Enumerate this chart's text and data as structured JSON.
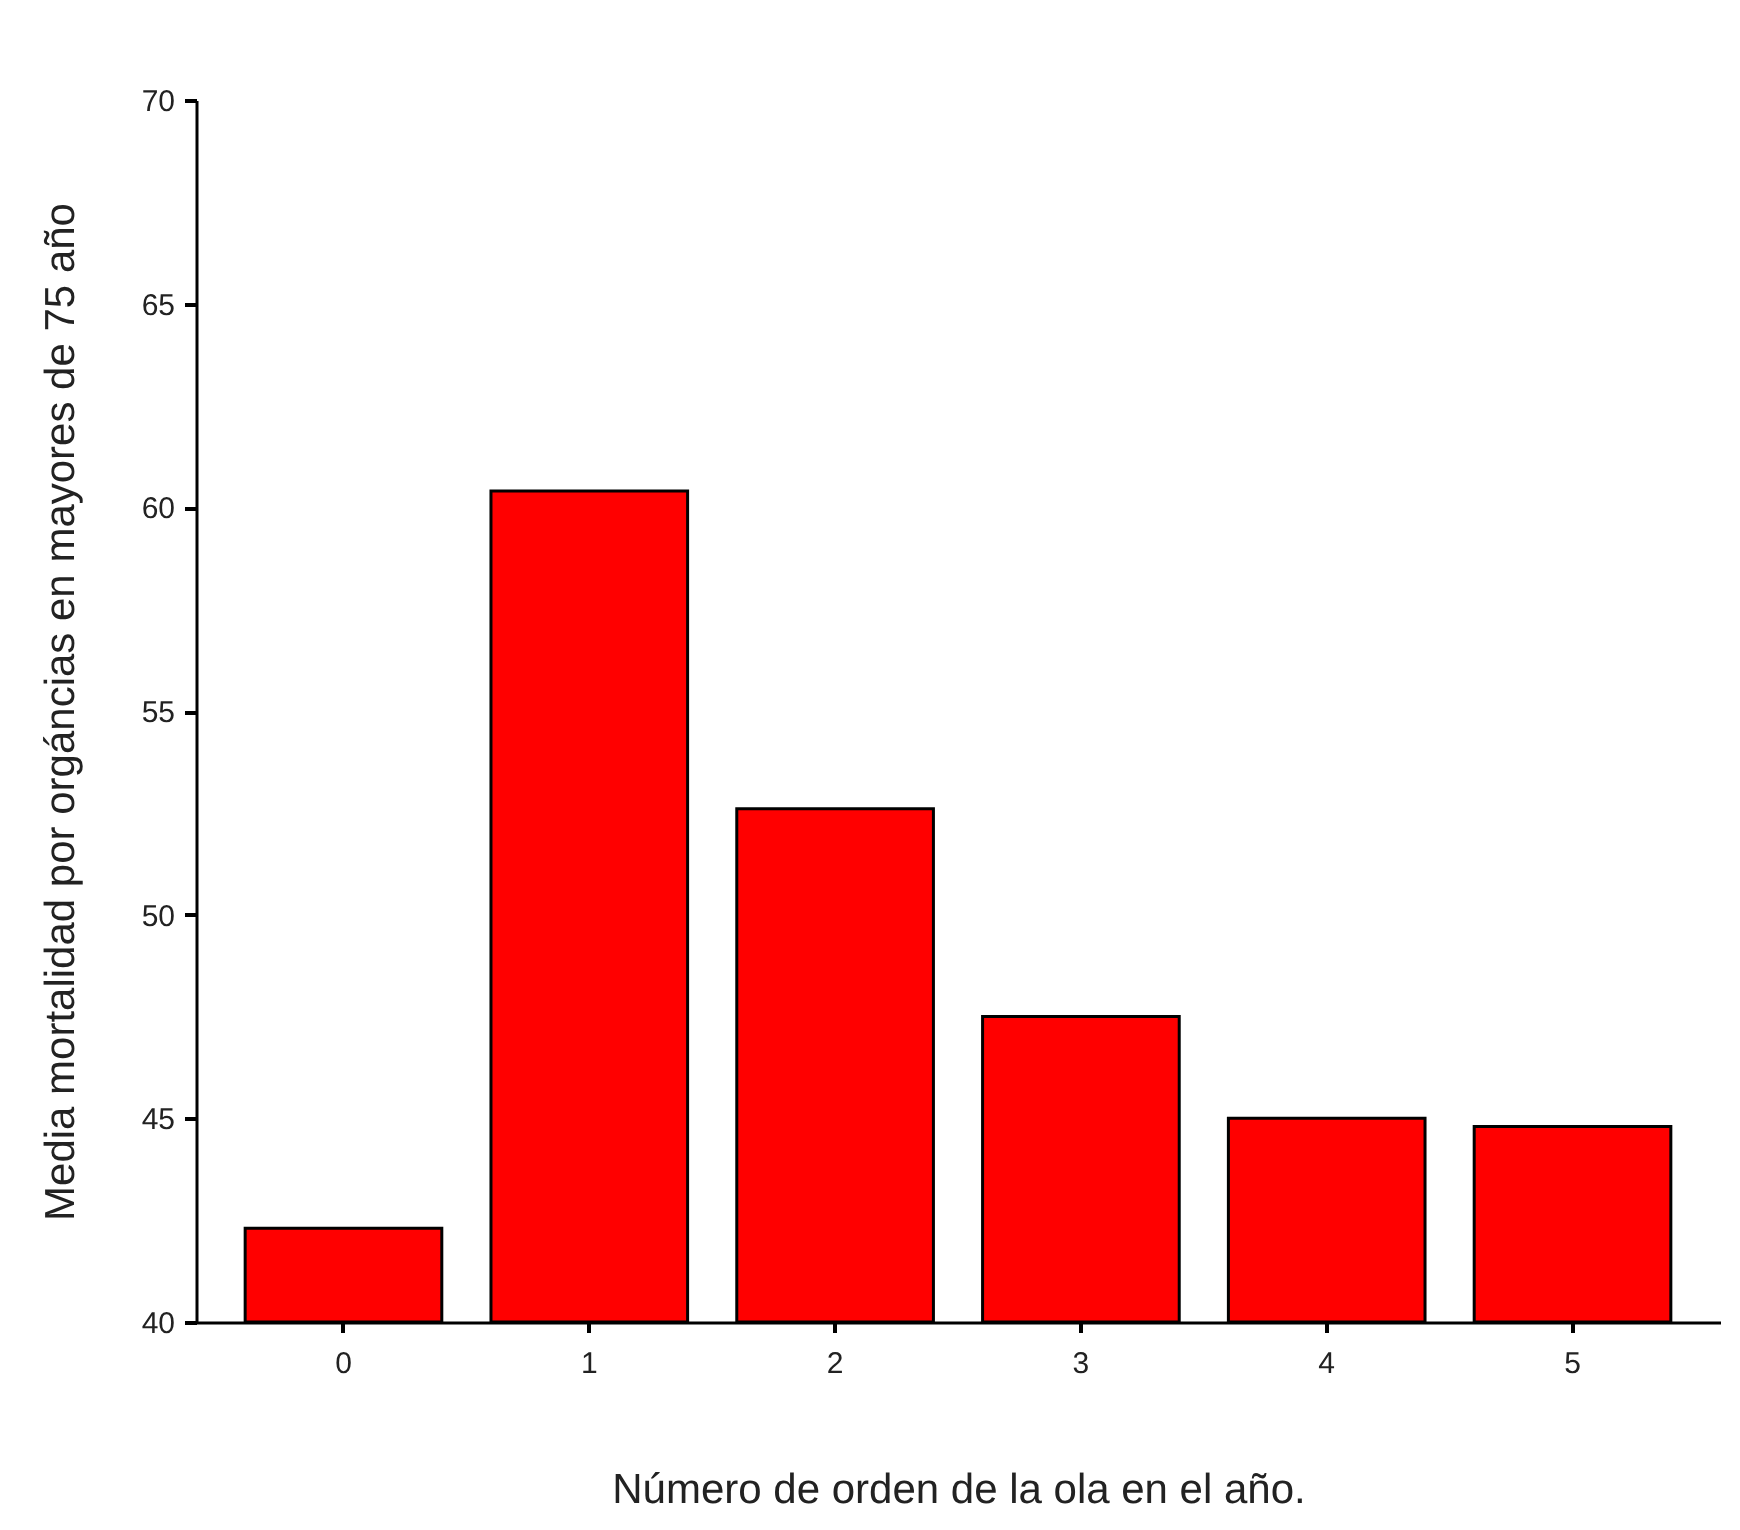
{
  "chart_data": {
    "type": "bar",
    "xlabel": "Número de orden de la ola en el año.",
    "ylabel": "Media mortalidad por orgáncias en mayores de 75 año",
    "categories": [
      "0",
      "1",
      "2",
      "3",
      "4",
      "5"
    ],
    "values": [
      42.3,
      60.4,
      52.6,
      47.5,
      45.0,
      44.8
    ],
    "color": "#ff0000",
    "ylim": [
      40,
      70
    ],
    "yticks": [
      40,
      45,
      50,
      55,
      60,
      65,
      70
    ],
    "grid": false
  }
}
